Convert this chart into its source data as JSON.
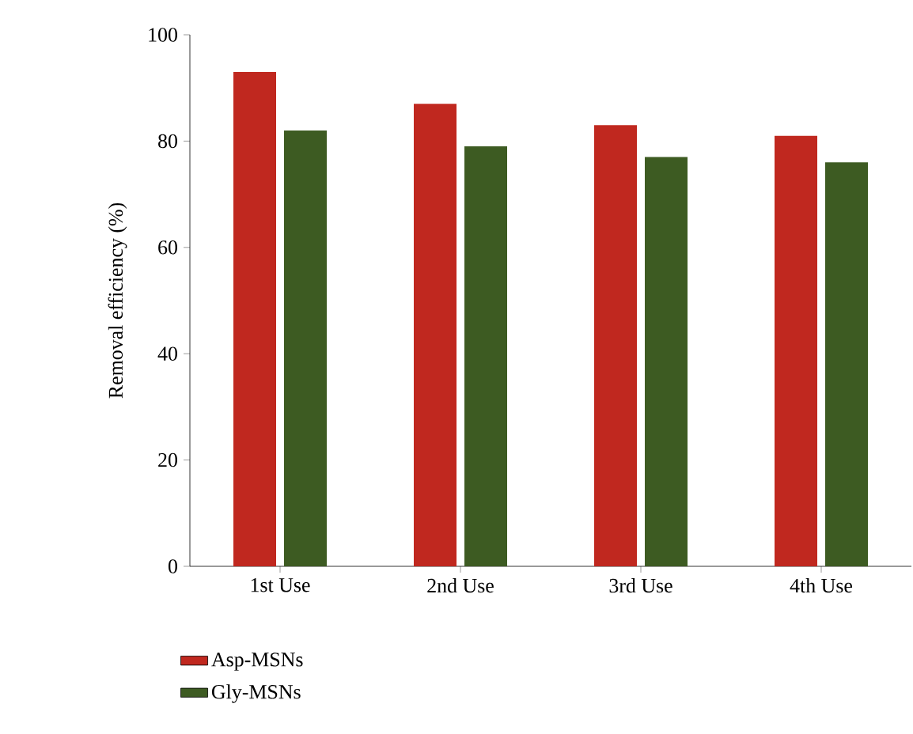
{
  "chart_data": {
    "type": "bar",
    "ylabel": "Removal efficiency (%)",
    "categories": [
      "1st Use",
      "2nd Use",
      "3rd Use",
      "4th Use"
    ],
    "series": [
      {
        "name": "Asp-MSNs",
        "color": "#c0281f",
        "values": [
          93,
          87,
          83,
          81
        ]
      },
      {
        "name": "Gly-MSNs",
        "color": "#3d5b22",
        "values": [
          82,
          79,
          77,
          76
        ]
      }
    ],
    "ylim": [
      0,
      100
    ],
    "yticks": [
      0,
      20,
      40,
      60,
      80,
      100
    ],
    "grid": false,
    "legend": "bottom left"
  }
}
